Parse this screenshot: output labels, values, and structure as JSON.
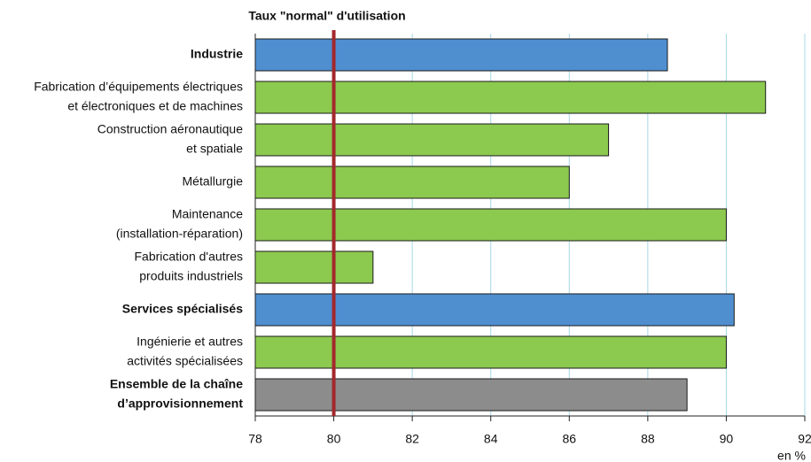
{
  "chart_data": {
    "type": "barh",
    "categories": [
      [
        "Industrie"
      ],
      [
        "Fabrication d’équipements électriques",
        "et électroniques et de machines"
      ],
      [
        "Construction aéronautique",
        "et spatiale"
      ],
      [
        "Métallurgie"
      ],
      [
        "Maintenance",
        "(installation-réparation)"
      ],
      [
        "Fabrication d'autres",
        "produits industriels"
      ],
      [
        "Services spécialisés"
      ],
      [
        "Ingénierie et autres",
        "activités spécialisées"
      ],
      [
        "Ensemble de la chaîne",
        "d’approvisionnement"
      ]
    ],
    "bold_categories": [
      true,
      false,
      false,
      false,
      false,
      false,
      true,
      false,
      true
    ],
    "values": [
      88.5,
      91,
      87,
      86,
      90,
      81,
      90.2,
      90,
      89
    ],
    "colors": [
      "#4f8fd0",
      "#8cc94f",
      "#8cc94f",
      "#8cc94f",
      "#8cc94f",
      "#8cc94f",
      "#4f8fd0",
      "#8cc94f",
      "#8c8c8c"
    ],
    "xlim": [
      78,
      92
    ],
    "xticks": [
      78,
      80,
      82,
      84,
      86,
      88,
      90,
      92
    ],
    "x_axis_label": "en %",
    "grid": true,
    "grid_color": "#a8d8e6",
    "reference_line": {
      "value": 80,
      "label": "Taux \"normal\" d'utilisation",
      "color": "#a3282c"
    }
  }
}
